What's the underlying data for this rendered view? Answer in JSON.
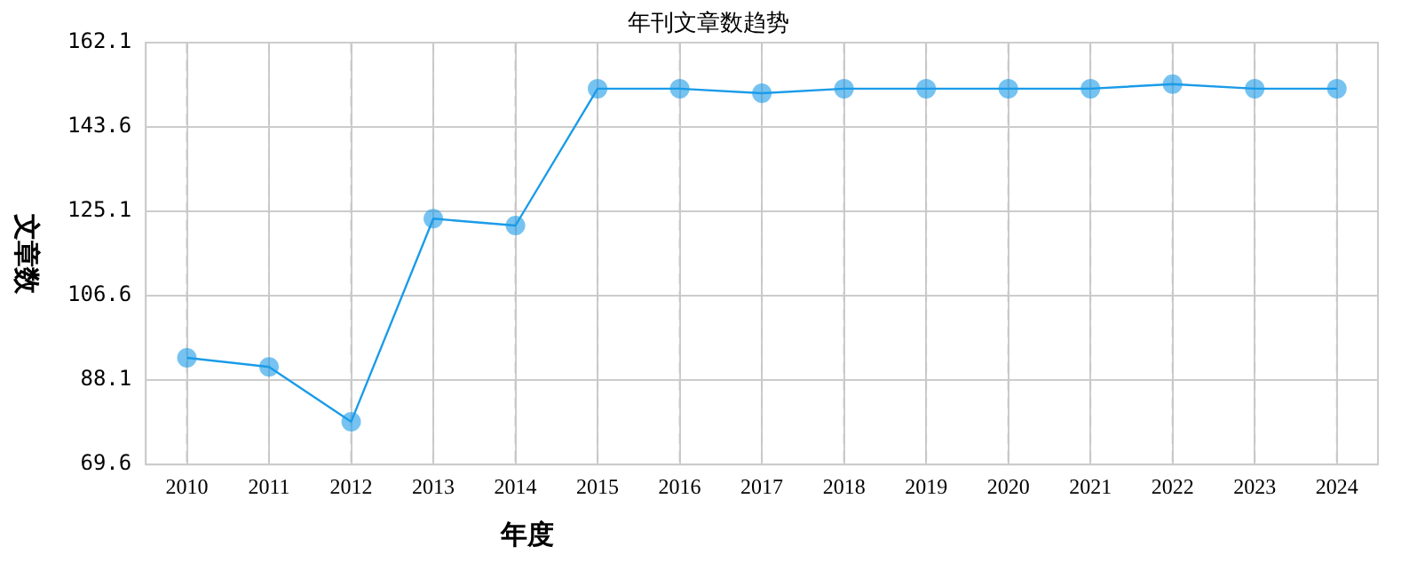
{
  "chart_data": {
    "type": "line",
    "title": "年刊文章数趋势",
    "xlabel": "年度",
    "ylabel": "文章数",
    "categories": [
      "2010",
      "2011",
      "2012",
      "2013",
      "2014",
      "2015",
      "2016",
      "2017",
      "2018",
      "2019",
      "2020",
      "2021",
      "2022",
      "2023",
      "2024"
    ],
    "series": [
      {
        "color": "#1a9be8",
        "values": [
          93,
          91,
          79,
          123.5,
          122,
          152,
          152,
          151,
          152,
          152,
          152,
          152,
          153,
          152,
          152
        ]
      }
    ],
    "ylim": [
      69.6,
      162.1
    ],
    "yticks": [
      69.6,
      88.1,
      106.6,
      125.1,
      143.6,
      162.1
    ],
    "grid": true,
    "legend": false,
    "marker": "circle",
    "line_style": "solid"
  }
}
